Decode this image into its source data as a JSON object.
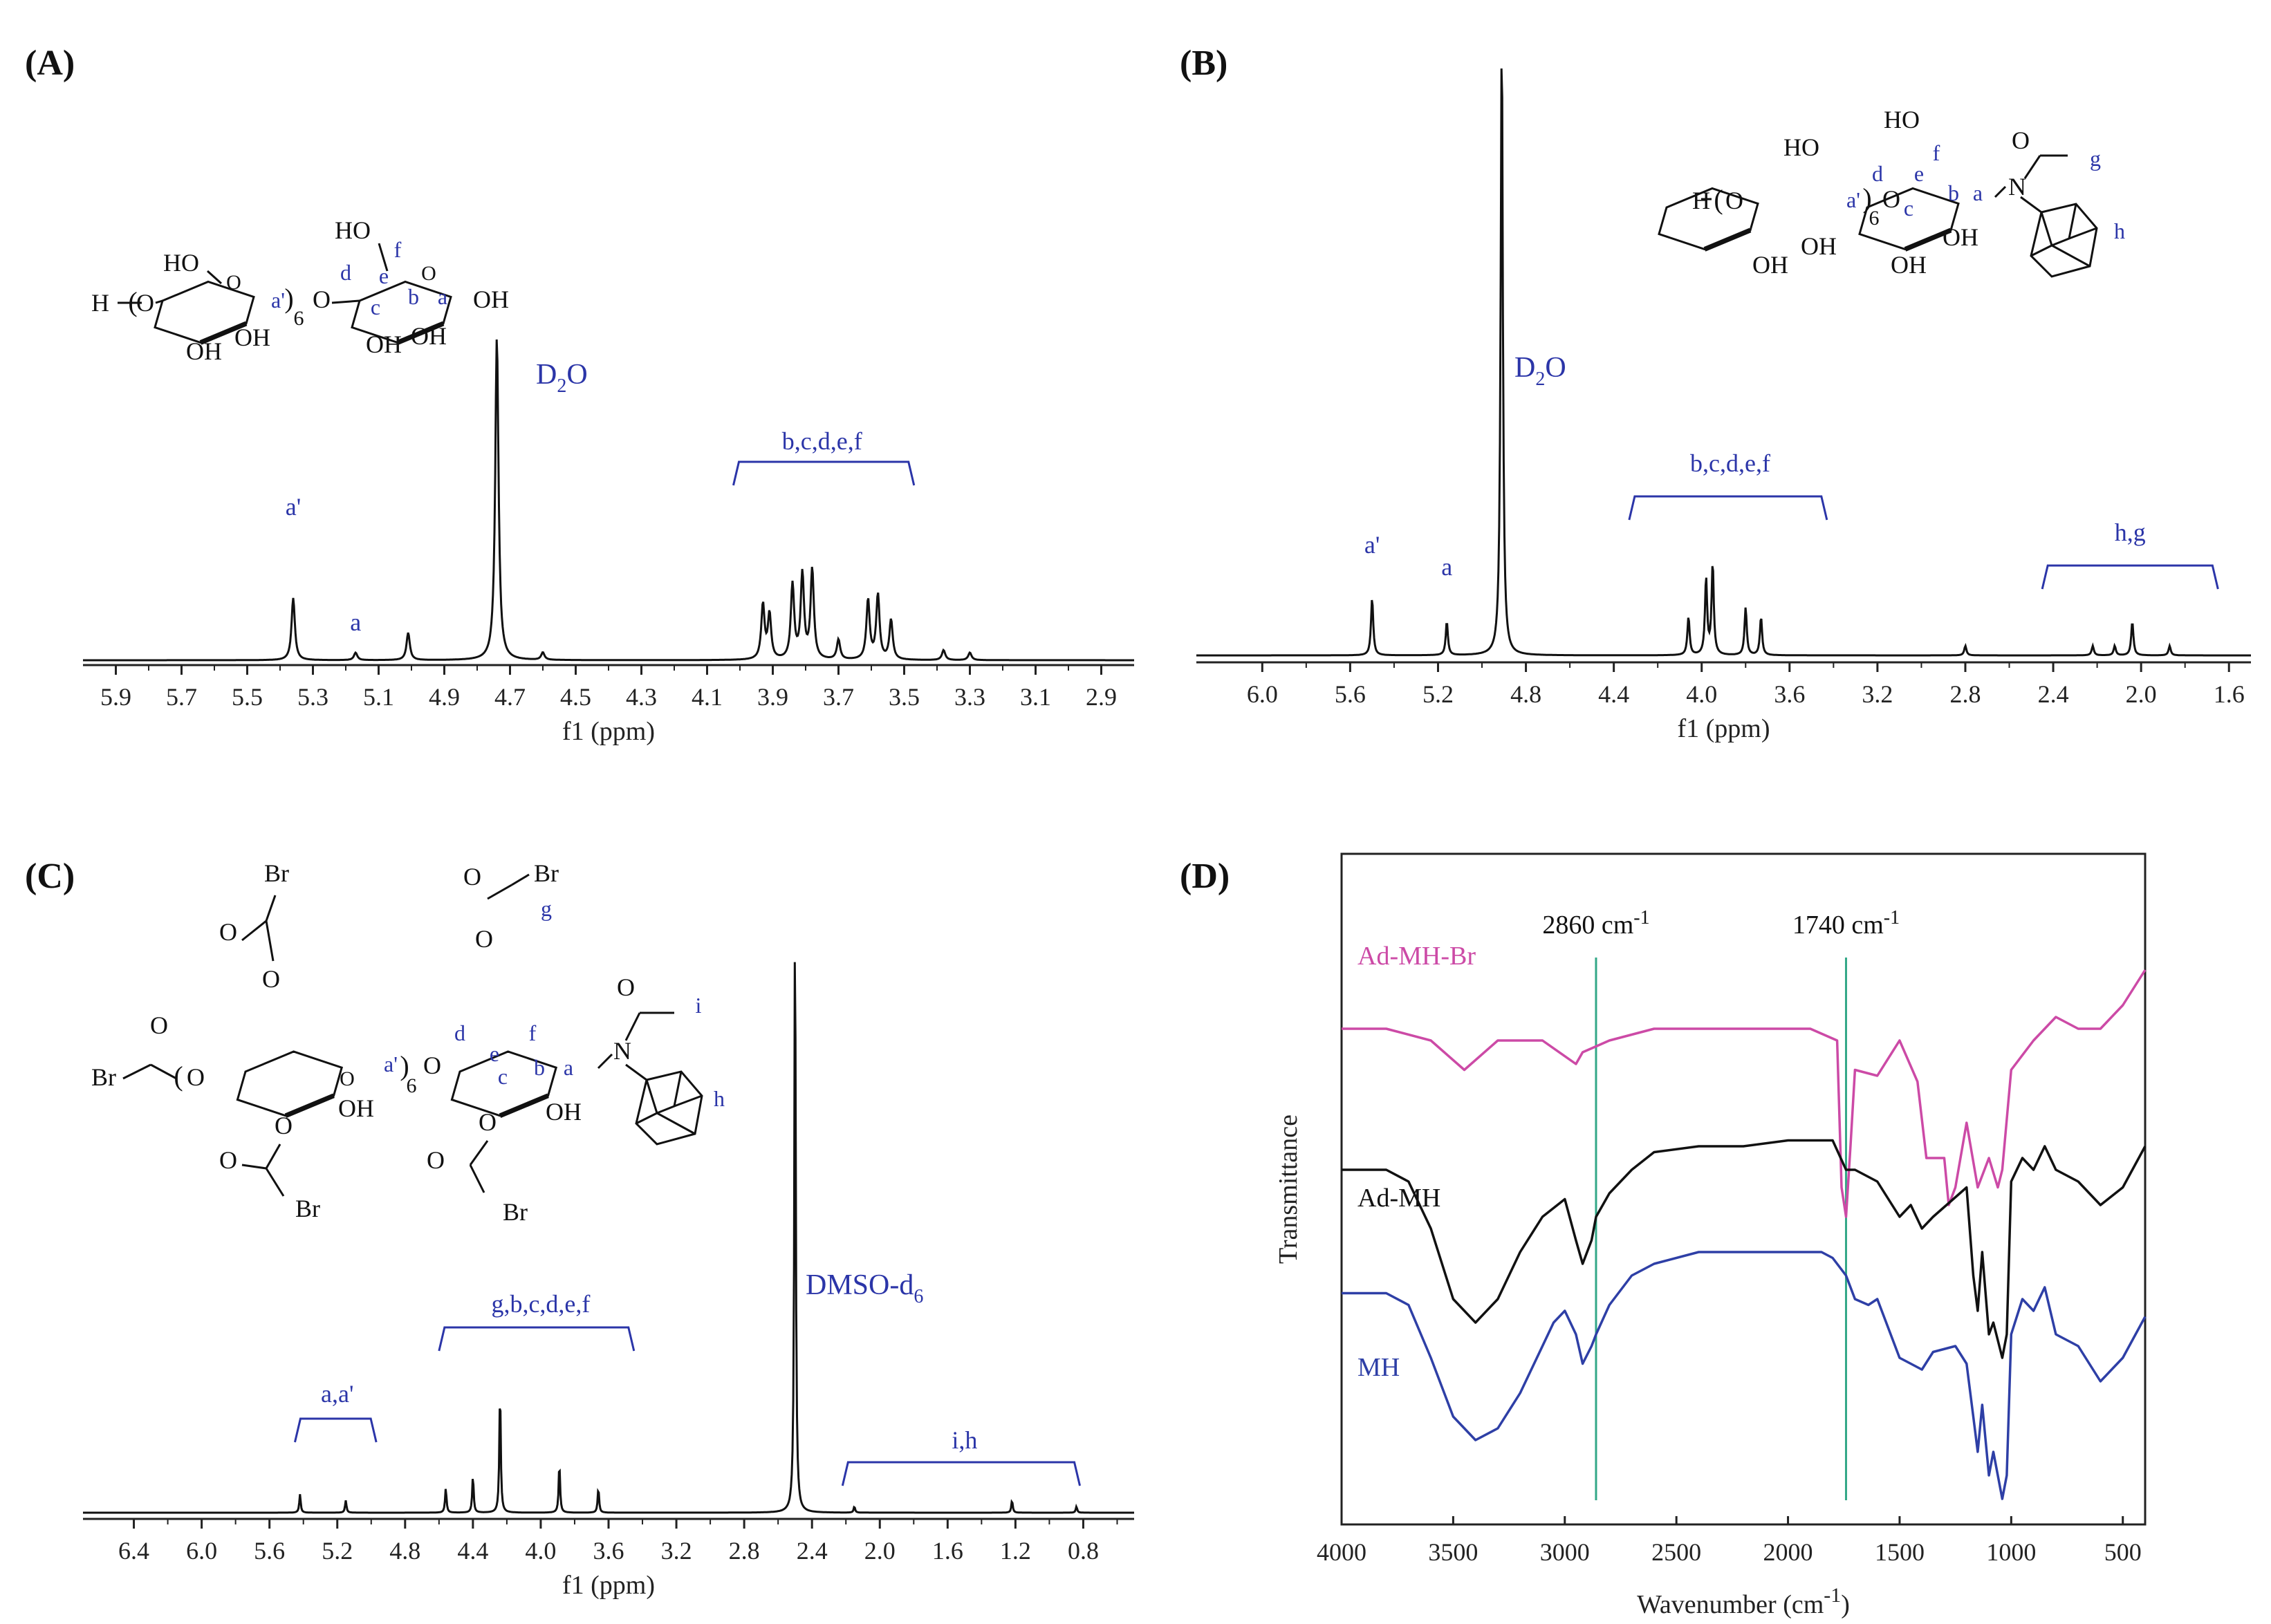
{
  "panels": {
    "A": {
      "label": "(A)"
    },
    "B": {
      "label": "(B)"
    },
    "C": {
      "label": "(C)"
    },
    "D": {
      "label": "(D)"
    }
  },
  "colors": {
    "annotation": "#2b35a8",
    "spectrum": "#111111",
    "ad_mh_br": "#cc4aa6",
    "ad_mh": "#111111",
    "mh": "#2e3fa6",
    "marker": "#33a887"
  },
  "chart_data": [
    {
      "id": "A",
      "type": "line",
      "xlabel": "f1 (ppm)",
      "x_reversed": true,
      "xlim": [
        6.0,
        2.8
      ],
      "xticks": [
        5.9,
        5.7,
        5.5,
        5.3,
        5.1,
        4.9,
        4.7,
        4.5,
        4.3,
        4.1,
        3.9,
        3.7,
        3.5,
        3.3,
        3.1,
        2.9
      ],
      "xtick_labels": [
        "5.9",
        "5.7",
        "5.5",
        "5.3",
        "5.1",
        "4.9",
        "4.7",
        "4.5",
        "4.3",
        "4.1",
        "3.9",
        "3.7",
        "3.5",
        "3.3",
        "3.1",
        "2.9"
      ],
      "peaks": [
        {
          "ppm": 5.36,
          "height": 0.25
        },
        {
          "ppm": 5.17,
          "height": 0.03
        },
        {
          "ppm": 5.01,
          "height": 0.11
        },
        {
          "ppm": 4.74,
          "height": 1.3
        },
        {
          "ppm": 4.6,
          "height": 0.03
        },
        {
          "ppm": 3.93,
          "height": 0.22
        },
        {
          "ppm": 3.91,
          "height": 0.18
        },
        {
          "ppm": 3.84,
          "height": 0.3
        },
        {
          "ppm": 3.81,
          "height": 0.34
        },
        {
          "ppm": 3.78,
          "height": 0.36
        },
        {
          "ppm": 3.7,
          "height": 0.08
        },
        {
          "ppm": 3.61,
          "height": 0.24
        },
        {
          "ppm": 3.58,
          "height": 0.26
        },
        {
          "ppm": 3.54,
          "height": 0.16
        },
        {
          "ppm": 3.38,
          "height": 0.04
        },
        {
          "ppm": 3.3,
          "height": 0.03
        }
      ],
      "annotations": [
        {
          "text": "a'",
          "ppm": 5.36
        },
        {
          "text": "a",
          "ppm": 5.17
        },
        {
          "text": "D2O",
          "ppm": 4.58
        },
        {
          "text": "b,c,d,e,f",
          "ppm": 3.75
        }
      ],
      "bracket": {
        "from": 4.02,
        "to": 3.47,
        "label": "b,c,d,e,f"
      },
      "solvent": {
        "main": "D",
        "sub": "2",
        "tail": "O"
      },
      "structure_labels": {
        "h": "H",
        "o_left": "O",
        "oh1": "OH",
        "oh2": "OH",
        "oh3": "OH",
        "oh4": "OH",
        "oh5": "OH",
        "ho1": "HO",
        "ho2": "HO",
        "oh_end": "OH",
        "o_link": "O",
        "six": "6",
        "a1": "a'",
        "a": "a",
        "b": "b",
        "c": "c",
        "d": "d",
        "e": "e",
        "f": "f"
      }
    },
    {
      "id": "B",
      "type": "line",
      "xlabel": "f1 (ppm)",
      "x_reversed": true,
      "xlim": [
        6.3,
        1.5
      ],
      "xticks": [
        6.0,
        5.6,
        5.2,
        4.8,
        4.4,
        4.0,
        3.6,
        3.2,
        2.8,
        2.4,
        2.0,
        1.6
      ],
      "xtick_labels": [
        "6.0",
        "5.6",
        "5.2",
        "4.8",
        "4.4",
        "4.0",
        "3.6",
        "3.2",
        "2.8",
        "2.4",
        "2.0",
        "1.6"
      ],
      "peaks": [
        {
          "ppm": 5.5,
          "height": 0.12
        },
        {
          "ppm": 5.16,
          "height": 0.07
        },
        {
          "ppm": 4.91,
          "height": 1.3
        },
        {
          "ppm": 4.06,
          "height": 0.08
        },
        {
          "ppm": 3.98,
          "height": 0.16
        },
        {
          "ppm": 3.95,
          "height": 0.19
        },
        {
          "ppm": 3.8,
          "height": 0.1
        },
        {
          "ppm": 3.73,
          "height": 0.08
        },
        {
          "ppm": 2.8,
          "height": 0.02
        },
        {
          "ppm": 2.22,
          "height": 0.02
        },
        {
          "ppm": 2.12,
          "height": 0.02
        },
        {
          "ppm": 2.04,
          "height": 0.07
        },
        {
          "ppm": 1.87,
          "height": 0.02
        }
      ],
      "annotations": [
        {
          "text": "a'",
          "ppm": 5.5
        },
        {
          "text": "a",
          "ppm": 5.16
        },
        {
          "text": "b,c,d,e,f",
          "ppm": 3.87
        },
        {
          "text": "h,g",
          "ppm": 2.05
        }
      ],
      "bracket": {
        "from": 4.33,
        "to": 3.43,
        "label": "b,c,d,e,f"
      },
      "bracket2": {
        "from": 2.45,
        "to": 1.65,
        "label": "h,g"
      },
      "solvent": {
        "main": "D",
        "sub": "2",
        "tail": "O"
      },
      "structure_labels": {
        "h": "H",
        "o_left": "O",
        "oh1": "OH",
        "oh2": "OH",
        "oh3": "OH",
        "oh4": "OH",
        "ho1": "HO",
        "ho2": "HO",
        "o_link": "O",
        "six": "6",
        "a1": "a'",
        "a": "a",
        "b": "b",
        "c": "c",
        "d": "d",
        "e": "e",
        "f": "f",
        "n": "N",
        "o_carb": "O",
        "g": "g",
        "hh": "h"
      }
    },
    {
      "id": "C",
      "type": "line",
      "xlabel": "f1 (ppm)",
      "x_reversed": true,
      "xlim": [
        6.7,
        0.5
      ],
      "xticks": [
        6.4,
        6.0,
        5.6,
        5.2,
        4.8,
        4.4,
        4.0,
        3.6,
        3.2,
        2.8,
        2.4,
        2.0,
        1.6,
        1.2,
        0.8
      ],
      "xtick_labels": [
        "6.4",
        "6.0",
        "5.6",
        "5.2",
        "4.8",
        "4.4",
        "4.0",
        "3.6",
        "3.2",
        "2.8",
        "2.4",
        "2.0",
        "1.6",
        "1.2",
        "0.8"
      ],
      "peaks": [
        {
          "ppm": 5.42,
          "height": 0.03
        },
        {
          "ppm": 5.15,
          "height": 0.02
        },
        {
          "ppm": 4.56,
          "height": 0.04
        },
        {
          "ppm": 4.4,
          "height": 0.06
        },
        {
          "ppm": 4.24,
          "height": 0.2
        },
        {
          "ppm": 3.89,
          "height": 0.08
        },
        {
          "ppm": 3.66,
          "height": 0.04
        },
        {
          "ppm": 2.5,
          "height": 1.0
        },
        {
          "ppm": 2.15,
          "height": 0.01
        },
        {
          "ppm": 1.22,
          "height": 0.02
        },
        {
          "ppm": 0.84,
          "height": 0.01
        }
      ],
      "annotations": [
        {
          "text": "a,a'",
          "ppm": 5.2
        },
        {
          "text": "g,b,c,d,e,f",
          "ppm": 4.0
        },
        {
          "text": "i,h",
          "ppm": 1.5
        }
      ],
      "bracket": {
        "from": 5.45,
        "to": 4.97,
        "label": "a,a'"
      },
      "bracket2": {
        "from": 4.6,
        "to": 3.45,
        "label": "g,b,c,d,e,f"
      },
      "bracket3": {
        "from": 2.22,
        "to": 0.82,
        "label": "i,h"
      },
      "solvent": {
        "main": "DMSO-d",
        "sub": "6"
      },
      "structure_labels": {
        "br1": "Br",
        "br2": "Br",
        "br3": "Br",
        "br4": "Br",
        "br5": "Br",
        "o1": "O",
        "o2": "O",
        "o3": "O",
        "o4": "O",
        "o5": "O",
        "o6": "O",
        "o7": "O",
        "o8": "O",
        "o9": "O",
        "oh1": "OH",
        "oh2": "OH",
        "six": "6",
        "a1": "a'",
        "a": "a",
        "b": "b",
        "c": "c",
        "d": "d",
        "e": "e",
        "f": "f",
        "g": "g",
        "i": "i",
        "n": "N",
        "hh": "h"
      }
    },
    {
      "id": "D",
      "type": "line",
      "xlabel": "Wavenumber (cm",
      "xlabel_sup": "-1",
      "xlabel_close": ")",
      "ylabel": "Transmittance",
      "x_reversed": true,
      "xlim": [
        4000,
        400
      ],
      "xticks": [
        4000,
        3500,
        3000,
        2500,
        2000,
        1500,
        1000,
        500
      ],
      "xtick_labels": [
        "4000",
        "3500",
        "3000",
        "2500",
        "2000",
        "1500",
        "1000",
        "500"
      ],
      "markers": [
        {
          "x": 2860,
          "label": "2860 cm",
          "sup": "-1"
        },
        {
          "x": 1740,
          "label": "1740 cm",
          "sup": "-1"
        }
      ],
      "series": [
        {
          "name": "Ad-MH-Br",
          "x": [
            4000,
            3800,
            3600,
            3450,
            3300,
            3100,
            2950,
            2920,
            2860,
            2800,
            2600,
            2200,
            1900,
            1780,
            1760,
            1740,
            1720,
            1700,
            1600,
            1500,
            1420,
            1380,
            1300,
            1280,
            1250,
            1200,
            1150,
            1100,
            1060,
            1040,
            1000,
            900,
            800,
            700,
            600,
            500,
            400
          ],
          "y": [
            0.82,
            0.82,
            0.8,
            0.75,
            0.8,
            0.8,
            0.76,
            0.78,
            0.79,
            0.8,
            0.82,
            0.82,
            0.82,
            0.8,
            0.55,
            0.5,
            0.62,
            0.75,
            0.74,
            0.8,
            0.73,
            0.6,
            0.6,
            0.52,
            0.55,
            0.66,
            0.55,
            0.6,
            0.55,
            0.58,
            0.75,
            0.8,
            0.84,
            0.82,
            0.82,
            0.86,
            0.92
          ]
        },
        {
          "name": "Ad-MH",
          "x": [
            4000,
            3800,
            3700,
            3600,
            3500,
            3400,
            3300,
            3200,
            3100,
            3000,
            2950,
            2920,
            2880,
            2860,
            2800,
            2700,
            2600,
            2400,
            2200,
            2000,
            1850,
            1800,
            1740,
            1700,
            1600,
            1500,
            1450,
            1400,
            1350,
            1200,
            1170,
            1150,
            1130,
            1100,
            1080,
            1040,
            1020,
            1000,
            950,
            900,
            850,
            800,
            700,
            600,
            500,
            400
          ],
          "y": [
            0.58,
            0.58,
            0.56,
            0.48,
            0.36,
            0.32,
            0.36,
            0.44,
            0.5,
            0.53,
            0.46,
            0.42,
            0.46,
            0.5,
            0.54,
            0.58,
            0.61,
            0.62,
            0.62,
            0.63,
            0.63,
            0.63,
            0.58,
            0.58,
            0.56,
            0.5,
            0.52,
            0.48,
            0.5,
            0.55,
            0.4,
            0.34,
            0.44,
            0.3,
            0.32,
            0.26,
            0.3,
            0.56,
            0.6,
            0.58,
            0.62,
            0.58,
            0.56,
            0.52,
            0.55,
            0.62
          ]
        },
        {
          "name": "MH",
          "x": [
            4000,
            3800,
            3700,
            3600,
            3500,
            3400,
            3300,
            3200,
            3100,
            3050,
            3000,
            2950,
            2920,
            2880,
            2860,
            2800,
            2700,
            2600,
            2400,
            2200,
            2000,
            1850,
            1800,
            1740,
            1700,
            1640,
            1600,
            1500,
            1450,
            1400,
            1350,
            1250,
            1200,
            1170,
            1150,
            1130,
            1100,
            1080,
            1040,
            1020,
            1000,
            950,
            900,
            850,
            800,
            700,
            600,
            500,
            400
          ],
          "y": [
            0.37,
            0.37,
            0.35,
            0.26,
            0.16,
            0.12,
            0.14,
            0.2,
            0.28,
            0.32,
            0.34,
            0.3,
            0.25,
            0.28,
            0.3,
            0.35,
            0.4,
            0.42,
            0.44,
            0.44,
            0.44,
            0.44,
            0.43,
            0.4,
            0.36,
            0.35,
            0.36,
            0.26,
            0.25,
            0.24,
            0.27,
            0.28,
            0.25,
            0.16,
            0.1,
            0.18,
            0.06,
            0.1,
            0.02,
            0.06,
            0.3,
            0.36,
            0.34,
            0.38,
            0.3,
            0.28,
            0.22,
            0.26,
            0.33
          ]
        }
      ]
    }
  ]
}
